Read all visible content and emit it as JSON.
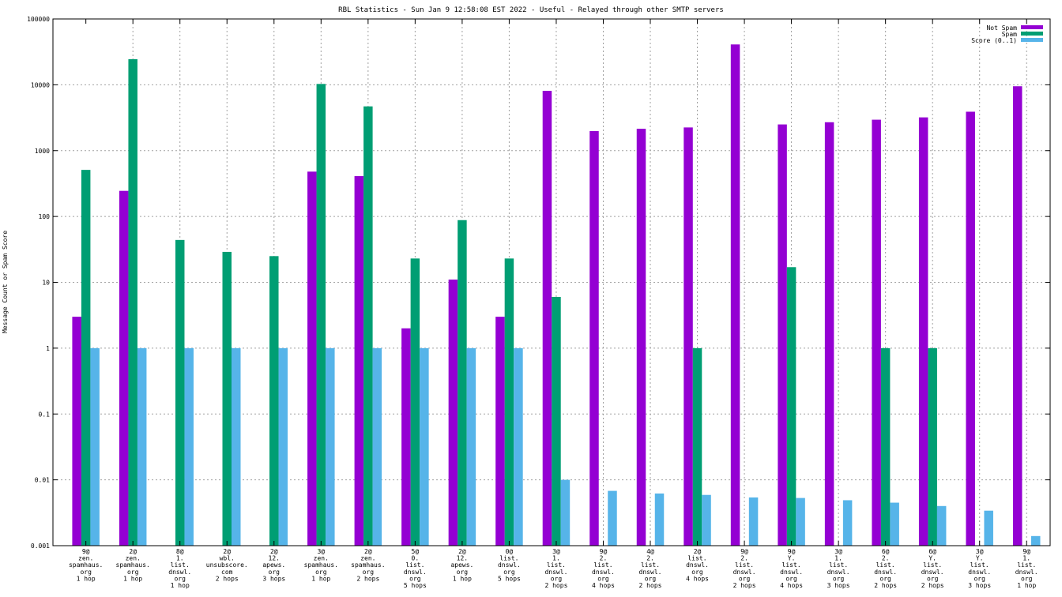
{
  "chart_data": {
    "type": "bar",
    "title": "RBL Statistics - Sun Jan  9 12:58:08 EST 2022 - Useful - Relayed through other SMTP servers",
    "xlabel": "",
    "ylabel": "Message Count or Spam Score",
    "yscale": "log",
    "ylim": [
      0.001,
      100000
    ],
    "yticks": [
      "0.001",
      "0.01",
      "0.1",
      "1",
      "10",
      "100",
      "1000",
      "10000",
      "100000"
    ],
    "grid": true,
    "legend_position": "top-right",
    "categories": [
      [
        "9@",
        "zen.",
        "spamhaus.",
        "org",
        "1 hop"
      ],
      [
        "2@",
        "zen.",
        "spamhaus.",
        "org",
        "1 hop"
      ],
      [
        "8@",
        "1.",
        "list.",
        "dnswl.",
        "org",
        "1 hop"
      ],
      [
        "2@",
        "wbl.",
        "unsubscore.",
        "com",
        "2 hops"
      ],
      [
        "2@",
        "12.",
        "apews.",
        "org",
        "3 hops"
      ],
      [
        "3@",
        "zen.",
        "spamhaus.",
        "org",
        "1 hop"
      ],
      [
        "2@",
        "zen.",
        "spamhaus.",
        "org",
        "2 hops"
      ],
      [
        "5@",
        "0.",
        "list.",
        "dnswl.",
        "org",
        "5 hops"
      ],
      [
        "2@",
        "12.",
        "apews.",
        "org",
        "1 hop"
      ],
      [
        "0@",
        "list.",
        "dnswl.",
        "org",
        "5 hops"
      ],
      [
        "3@",
        "1.",
        "list.",
        "dnswl.",
        "org",
        "2 hops"
      ],
      [
        "9@",
        "2.",
        "list.",
        "dnswl.",
        "org",
        "4 hops"
      ],
      [
        "4@",
        "2.",
        "list.",
        "dnswl.",
        "org",
        "2 hops"
      ],
      [
        "2@",
        "list.",
        "dnswl.",
        "org",
        "4 hops"
      ],
      [
        "9@",
        "2.",
        "list.",
        "dnswl.",
        "org",
        "2 hops"
      ],
      [
        "9@",
        "Y.",
        "list.",
        "dnswl.",
        "org",
        "4 hops"
      ],
      [
        "3@",
        "1.",
        "list.",
        "dnswl.",
        "org",
        "3 hops"
      ],
      [
        "6@",
        "2.",
        "list.",
        "dnswl.",
        "org",
        "2 hops"
      ],
      [
        "6@",
        "Y.",
        "list.",
        "dnswl.",
        "org",
        "2 hops"
      ],
      [
        "3@",
        "Y.",
        "list.",
        "dnswl.",
        "org",
        "3 hops"
      ],
      [
        "9@",
        "1.",
        "list.",
        "dnswl.",
        "org",
        "1 hop"
      ]
    ],
    "series": [
      {
        "name": "Not Spam",
        "color": "#9400d3",
        "values": [
          3,
          245,
          null,
          null,
          null,
          480,
          410,
          2,
          11,
          3,
          8100,
          1980,
          2150,
          2250,
          41000,
          2500,
          2700,
          2950,
          3200,
          3900,
          9500
        ]
      },
      {
        "name": "Spam",
        "color": "#009e73",
        "values": [
          510,
          24500,
          44,
          29,
          25,
          10300,
          4700,
          23,
          88,
          23,
          6,
          null,
          null,
          1,
          null,
          17,
          null,
          1,
          1,
          null,
          null
        ]
      },
      {
        "name": "Score (0..1)",
        "color": "#56b4e9",
        "values": [
          1,
          1,
          1,
          1,
          1,
          1,
          1,
          1,
          1,
          1,
          0.01,
          0.0068,
          0.0062,
          0.0059,
          0.0054,
          0.0053,
          0.0049,
          0.0045,
          0.004,
          0.0034,
          0.0014
        ]
      }
    ]
  }
}
